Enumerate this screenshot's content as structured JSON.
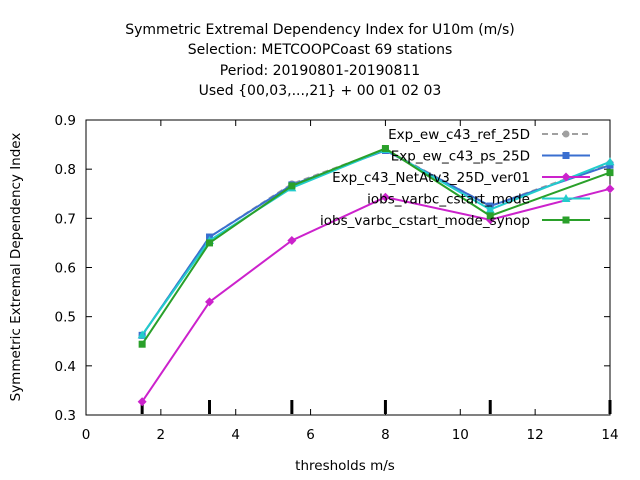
{
  "chart_data": {
    "type": "line",
    "title": "Symmetric Extremal Dependency Index  for U10m (m/s)",
    "subtitle_lines": [
      "Selection: METCOOPCoast     69 stations",
      "Period: 20190801-20190811",
      "Used {00,03,...,21} + 00 01 02 03"
    ],
    "xlabel": "thresholds m/s",
    "ylabel": "Symmetric Extremal Dependency Index",
    "xlim": [
      0,
      14
    ],
    "ylim": [
      0.3,
      0.9
    ],
    "xticks": [
      0,
      2,
      4,
      6,
      8,
      10,
      12,
      14
    ],
    "yticks": [
      0.3,
      0.4,
      0.5,
      0.6,
      0.7,
      0.8,
      0.9
    ],
    "threshold_marks": [
      1.5,
      3.3,
      5.5,
      8,
      10.8,
      14
    ],
    "grid": false,
    "legend_position": "top-right",
    "x": [
      1.5,
      3.3,
      5.5,
      8,
      10.8,
      14
    ],
    "series": [
      {
        "name": "Exp_ew_c43_ref_25D",
        "color": "#a0a0a0",
        "dash": "6,4",
        "marker": "circle",
        "values": [
          0.462,
          0.662,
          0.77,
          0.84,
          0.725,
          0.812
        ]
      },
      {
        "name": "Exp_ew_c43_ps_25D",
        "color": "#3a6fd0",
        "dash": "",
        "marker": "square",
        "values": [
          0.462,
          0.662,
          0.768,
          0.838,
          0.725,
          0.808
        ]
      },
      {
        "name": "Exp_c43_NetAtv3_25D_ver01",
        "color": "#cc22cc",
        "dash": "",
        "marker": "diamond",
        "values": [
          0.327,
          0.53,
          0.655,
          0.743,
          0.697,
          0.76
        ]
      },
      {
        "name": "iobs_varbc_cstart_mode",
        "color": "#22cccc",
        "dash": "",
        "marker": "triangle",
        "values": [
          0.463,
          0.655,
          0.762,
          0.84,
          0.718,
          0.815
        ]
      },
      {
        "name": "iobs_varbc_cstart_mode_synop",
        "color": "#2aa02a",
        "dash": "",
        "marker": "square",
        "values": [
          0.444,
          0.65,
          0.766,
          0.842,
          0.705,
          0.793
        ]
      }
    ]
  }
}
